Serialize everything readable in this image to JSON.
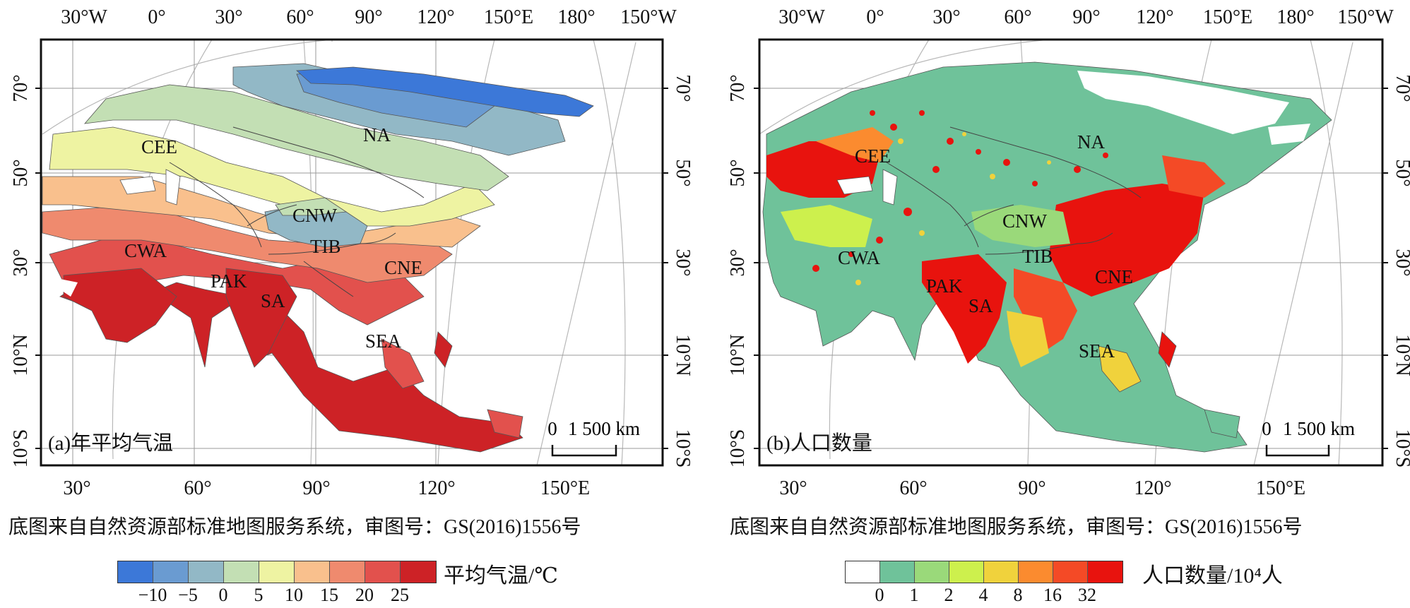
{
  "source_note": "底图来自自然资源部标准地图服务系统，审图号：GS(2016)1556号",
  "axes": {
    "top_labels": [
      "30°W",
      "0°",
      "30°",
      "60°",
      "90°",
      "120°",
      "150°E",
      "180°",
      "150°W"
    ],
    "bottom_labels": [
      "30°",
      "60°",
      "90°",
      "120°",
      "150°E"
    ],
    "left_labels": [
      "70°",
      "50°",
      "30°",
      "10°N",
      "10°S"
    ],
    "right_labels": [
      "70°",
      "50°",
      "30°",
      "10°N",
      "10°S"
    ]
  },
  "regions": [
    "CEE",
    "NA",
    "CNW",
    "CWA",
    "TIB",
    "CNE",
    "PAK",
    "SA",
    "SEA"
  ],
  "scale_bar": {
    "zero": "0",
    "distance": "1 500 km"
  },
  "panels": [
    {
      "id": "a",
      "label": "(a)年平均气温",
      "legend": {
        "title": "平均气温/℃",
        "colors": [
          "#3c78d8",
          "#6a9bd1",
          "#92b8c6",
          "#c3dfb4",
          "#eef3a2",
          "#f9c08d",
          "#ef8a6e",
          "#e2514d",
          "#cd2226"
        ],
        "ticks": [
          "−10",
          "−5",
          "0",
          "5",
          "10",
          "15",
          "20",
          "25"
        ]
      }
    },
    {
      "id": "b",
      "label": "(b)人口数量",
      "legend": {
        "title": "人口数量/10⁴人",
        "colors": [
          "#ffffff",
          "#6fc29a",
          "#9ad97a",
          "#cdf04d",
          "#f0d23c",
          "#fb8b2f",
          "#f44a26",
          "#e8130e"
        ],
        "ticks": [
          "0",
          "1",
          "2",
          "4",
          "8",
          "16",
          "32"
        ]
      }
    }
  ]
}
